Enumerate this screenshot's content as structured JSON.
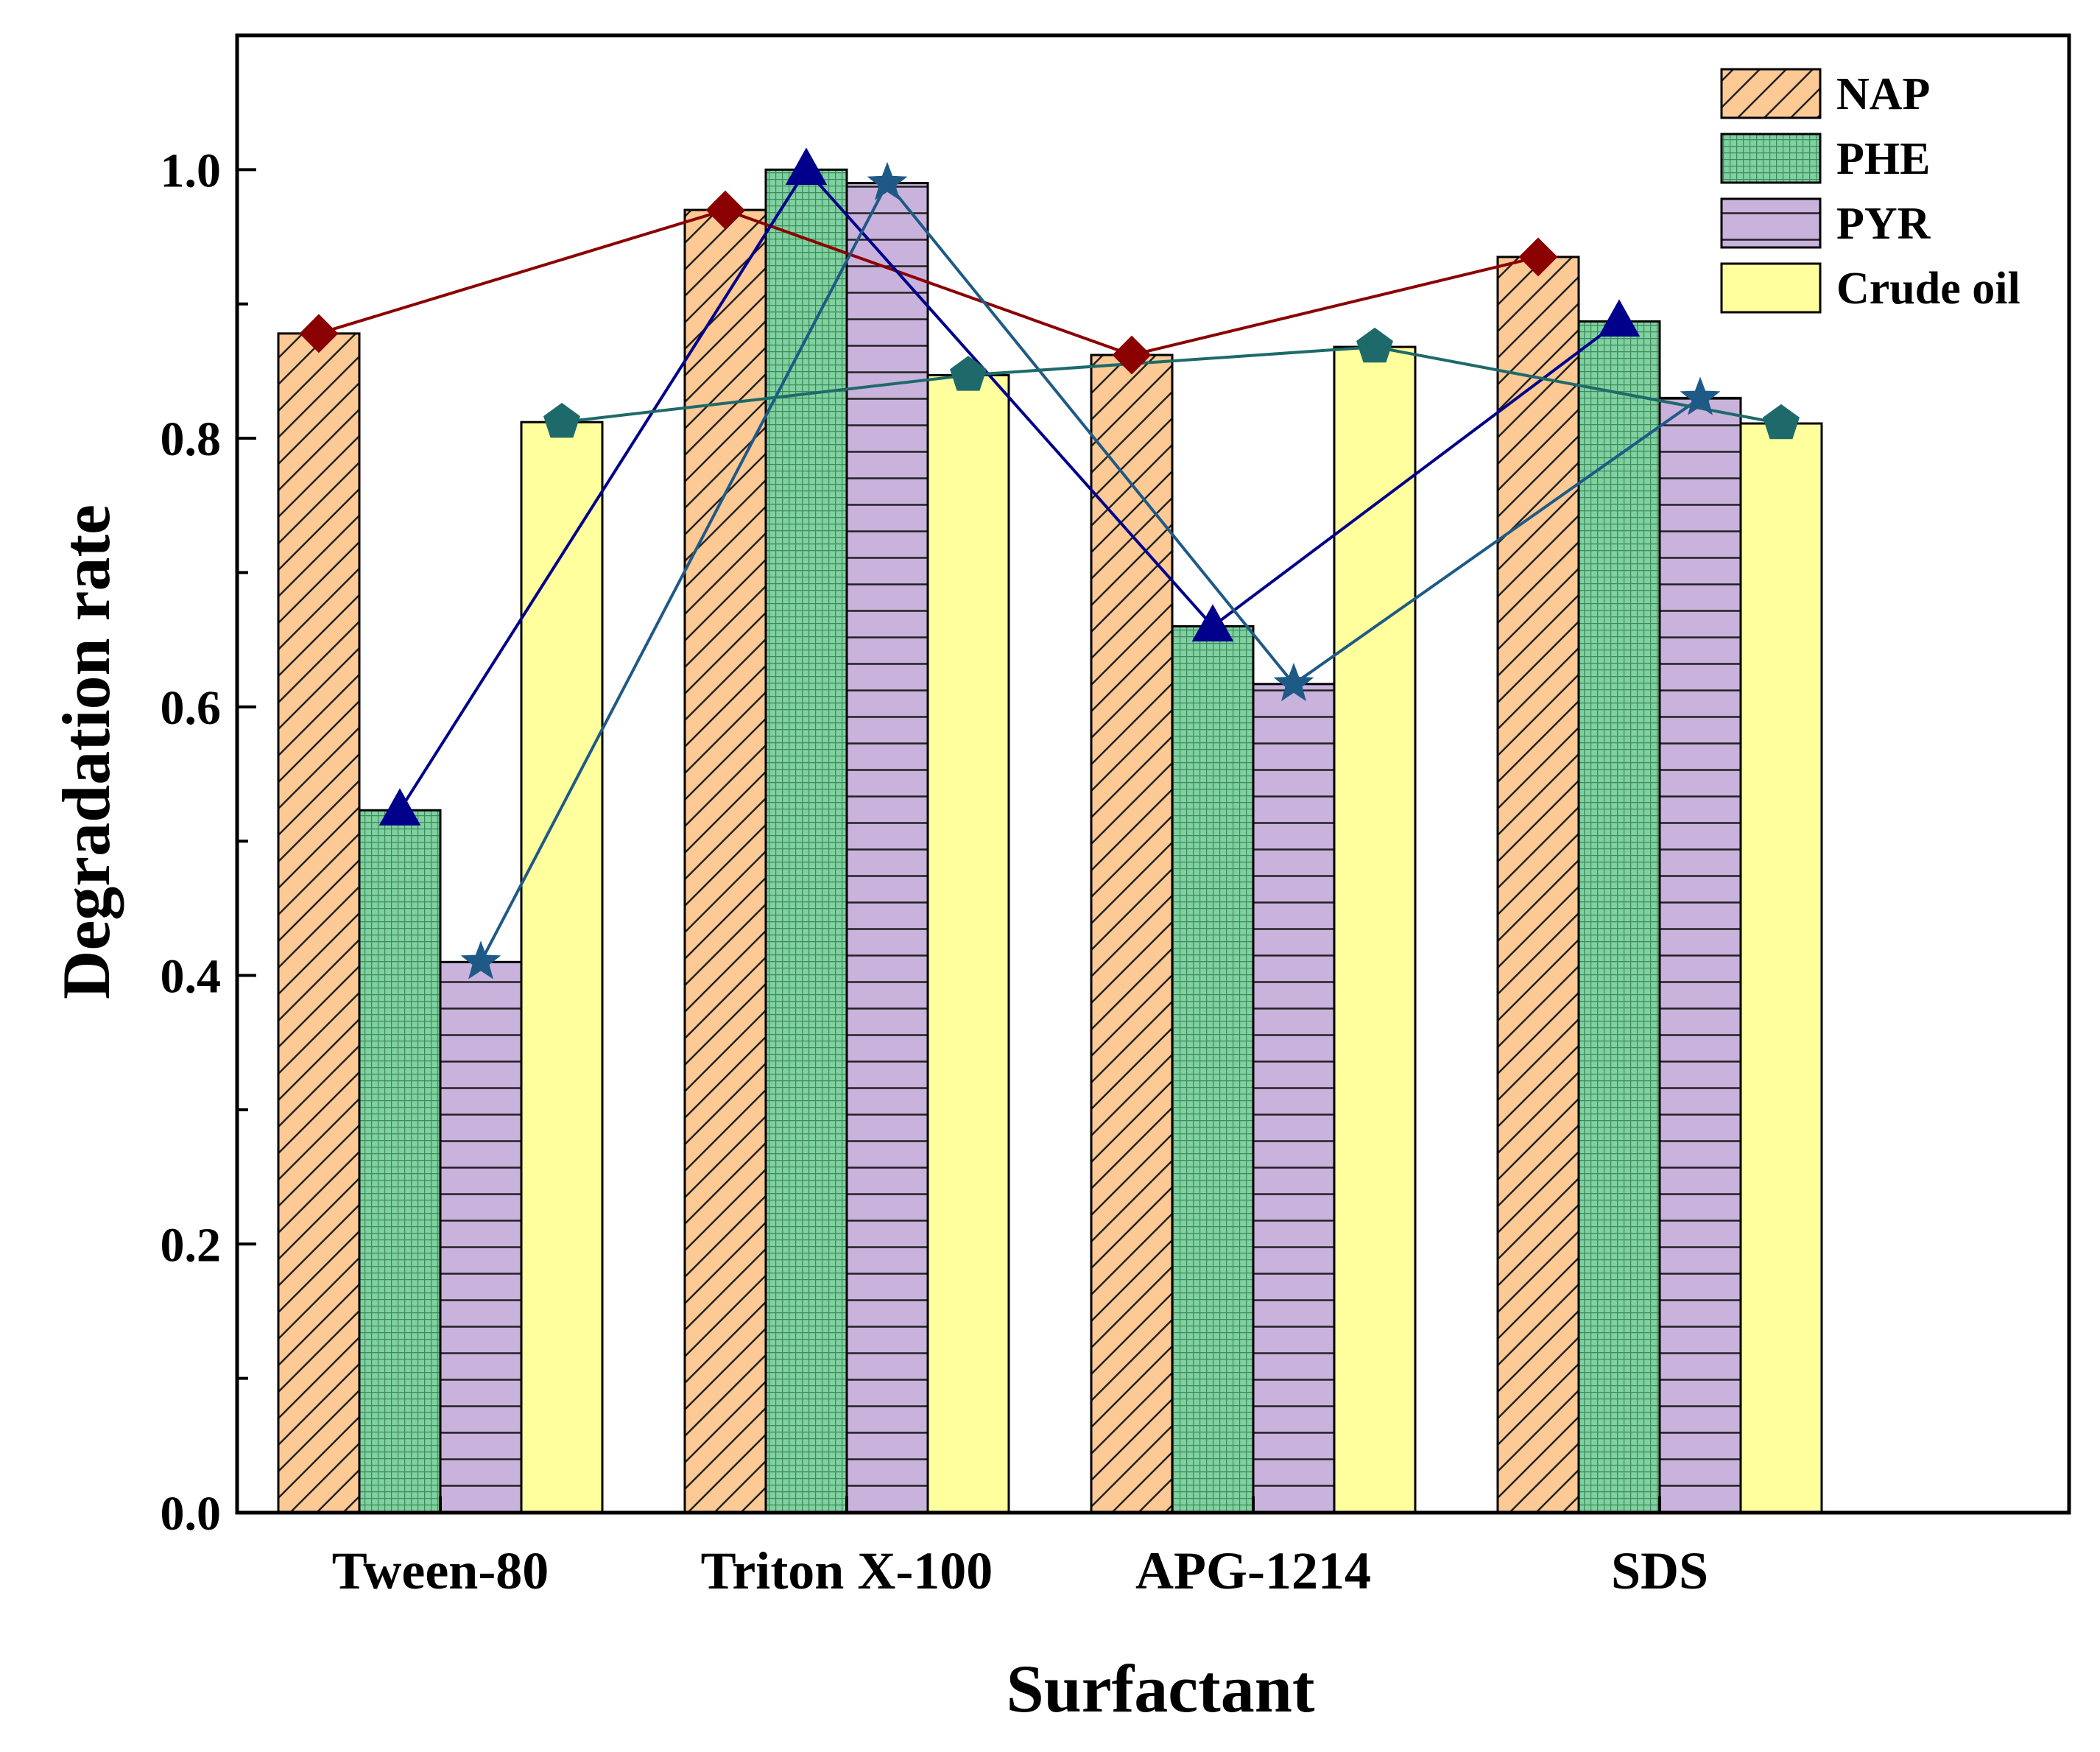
{
  "chart_data": {
    "type": "bar",
    "xlabel": "Surfactant",
    "ylabel": "Degradation rate",
    "ylim": [
      0,
      1.1
    ],
    "yticks": [
      "0.0",
      "0.2",
      "0.4",
      "0.6",
      "0.8",
      "1.0"
    ],
    "categories": [
      "Tween-80",
      "Triton X-100",
      "APG-1214",
      "SDS"
    ],
    "legend_position": "top-right",
    "grid": false,
    "series": [
      {
        "name": "NAP",
        "values": [
          0.878,
          0.97,
          0.862,
          0.935
        ],
        "fill": "#fdc994",
        "pattern": "diagonal-hatch",
        "line_color": "#8b0000",
        "marker": "diamond"
      },
      {
        "name": "PHE",
        "values": [
          0.523,
          1.0,
          0.66,
          0.887
        ],
        "fill": "#7fd1a0",
        "pattern": "crosshatch",
        "line_color": "#00008b",
        "marker": "triangle"
      },
      {
        "name": "PYR",
        "values": [
          0.41,
          0.99,
          0.617,
          0.83
        ],
        "fill": "#c9b2dc",
        "pattern": "horizontal-lines",
        "line_color": "#1f5a86",
        "marker": "star"
      },
      {
        "name": "Crude oil",
        "values": [
          0.812,
          0.847,
          0.868,
          0.811
        ],
        "fill": "#ffff9e",
        "pattern": "none",
        "line_color": "#1e6a6a",
        "marker": "pentagon"
      }
    ]
  }
}
